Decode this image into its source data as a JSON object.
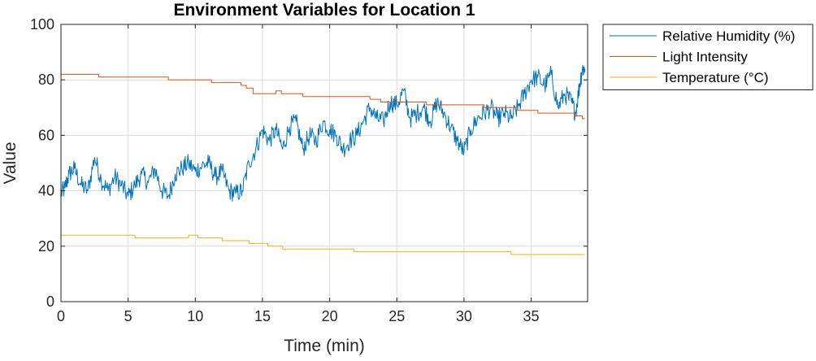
{
  "chart_data": {
    "type": "line",
    "title": "Environment Variables for Location 1",
    "xlabel": "Time (min)",
    "ylabel": "Value",
    "xlim": [
      0,
      39.2
    ],
    "ylim": [
      0,
      100
    ],
    "xticks": [
      0,
      5,
      10,
      15,
      20,
      25,
      30,
      35
    ],
    "yticks": [
      0,
      20,
      40,
      60,
      80,
      100
    ],
    "grid": true,
    "legend_position": "outside-top-right",
    "series": [
      {
        "name": "Relative Humidity (%)",
        "color": "#0072BD",
        "style": "noisy",
        "points": [
          [
            0,
            39
          ],
          [
            0.3,
            41
          ],
          [
            0.6,
            46
          ],
          [
            1.0,
            48
          ],
          [
            1.5,
            42
          ],
          [
            2.0,
            40
          ],
          [
            2.5,
            52
          ],
          [
            3.0,
            44
          ],
          [
            3.5,
            40
          ],
          [
            4.0,
            45
          ],
          [
            4.5,
            42
          ],
          [
            5.0,
            38
          ],
          [
            5.5,
            42
          ],
          [
            6.0,
            46
          ],
          [
            6.5,
            43
          ],
          [
            7.0,
            48
          ],
          [
            7.5,
            40
          ],
          [
            8.0,
            38
          ],
          [
            8.5,
            46
          ],
          [
            9.0,
            48
          ],
          [
            9.5,
            50
          ],
          [
            10.0,
            47
          ],
          [
            10.5,
            49
          ],
          [
            11.0,
            50
          ],
          [
            11.5,
            45
          ],
          [
            12.0,
            47
          ],
          [
            12.5,
            40
          ],
          [
            13.0,
            39
          ],
          [
            13.5,
            40
          ],
          [
            14.0,
            50
          ],
          [
            14.5,
            55
          ],
          [
            15.0,
            62
          ],
          [
            15.5,
            58
          ],
          [
            16.0,
            62
          ],
          [
            16.5,
            55
          ],
          [
            17.0,
            63
          ],
          [
            17.5,
            65
          ],
          [
            18.0,
            55
          ],
          [
            18.5,
            60
          ],
          [
            19.0,
            58
          ],
          [
            19.5,
            65
          ],
          [
            20.0,
            62
          ],
          [
            20.5,
            60
          ],
          [
            21.0,
            55
          ],
          [
            21.5,
            58
          ],
          [
            22.0,
            60
          ],
          [
            22.5,
            65
          ],
          [
            23.0,
            70
          ],
          [
            23.5,
            66
          ],
          [
            24.0,
            65
          ],
          [
            24.5,
            72
          ],
          [
            25.0,
            71
          ],
          [
            25.5,
            76
          ],
          [
            26.0,
            66
          ],
          [
            26.5,
            68
          ],
          [
            27.0,
            70
          ],
          [
            27.5,
            65
          ],
          [
            28.0,
            72
          ],
          [
            28.5,
            68
          ],
          [
            29.0,
            63
          ],
          [
            29.5,
            58
          ],
          [
            30.0,
            54
          ],
          [
            30.5,
            62
          ],
          [
            31.0,
            66
          ],
          [
            31.5,
            68
          ],
          [
            32.0,
            70
          ],
          [
            32.5,
            66
          ],
          [
            33.0,
            68
          ],
          [
            33.5,
            66
          ],
          [
            34.0,
            70
          ],
          [
            34.5,
            75
          ],
          [
            35.0,
            80
          ],
          [
            35.5,
            81
          ],
          [
            36.0,
            78
          ],
          [
            36.5,
            82
          ],
          [
            37.0,
            70
          ],
          [
            37.5,
            75
          ],
          [
            38.0,
            72
          ],
          [
            38.3,
            68
          ],
          [
            38.6,
            78
          ],
          [
            38.8,
            84
          ],
          [
            39.0,
            84
          ]
        ]
      },
      {
        "name": "Light Intensity",
        "color": "#D95319",
        "style": "step",
        "points": [
          [
            0,
            82
          ],
          [
            2.8,
            81
          ],
          [
            8.0,
            80
          ],
          [
            11.2,
            79
          ],
          [
            13.4,
            78
          ],
          [
            13.8,
            77
          ],
          [
            14.3,
            75
          ],
          [
            16.0,
            76
          ],
          [
            16.4,
            75
          ],
          [
            18.0,
            74
          ],
          [
            23.0,
            73
          ],
          [
            23.8,
            72
          ],
          [
            26.5,
            72
          ],
          [
            27.2,
            71
          ],
          [
            31.5,
            70
          ],
          [
            34.0,
            69
          ],
          [
            35.5,
            68
          ],
          [
            38.2,
            67
          ],
          [
            38.8,
            66
          ],
          [
            39.0,
            66
          ]
        ]
      },
      {
        "name": "Temperature (°C)",
        "color": "#EDB120",
        "style": "step",
        "points": [
          [
            0,
            24
          ],
          [
            5.5,
            23
          ],
          [
            9.5,
            24
          ],
          [
            10.2,
            23
          ],
          [
            12.0,
            22
          ],
          [
            14.0,
            21
          ],
          [
            15.4,
            20
          ],
          [
            16.5,
            19
          ],
          [
            21.5,
            19
          ],
          [
            21.8,
            18
          ],
          [
            22.8,
            18
          ],
          [
            33.5,
            17
          ],
          [
            39.0,
            17
          ]
        ]
      }
    ]
  }
}
